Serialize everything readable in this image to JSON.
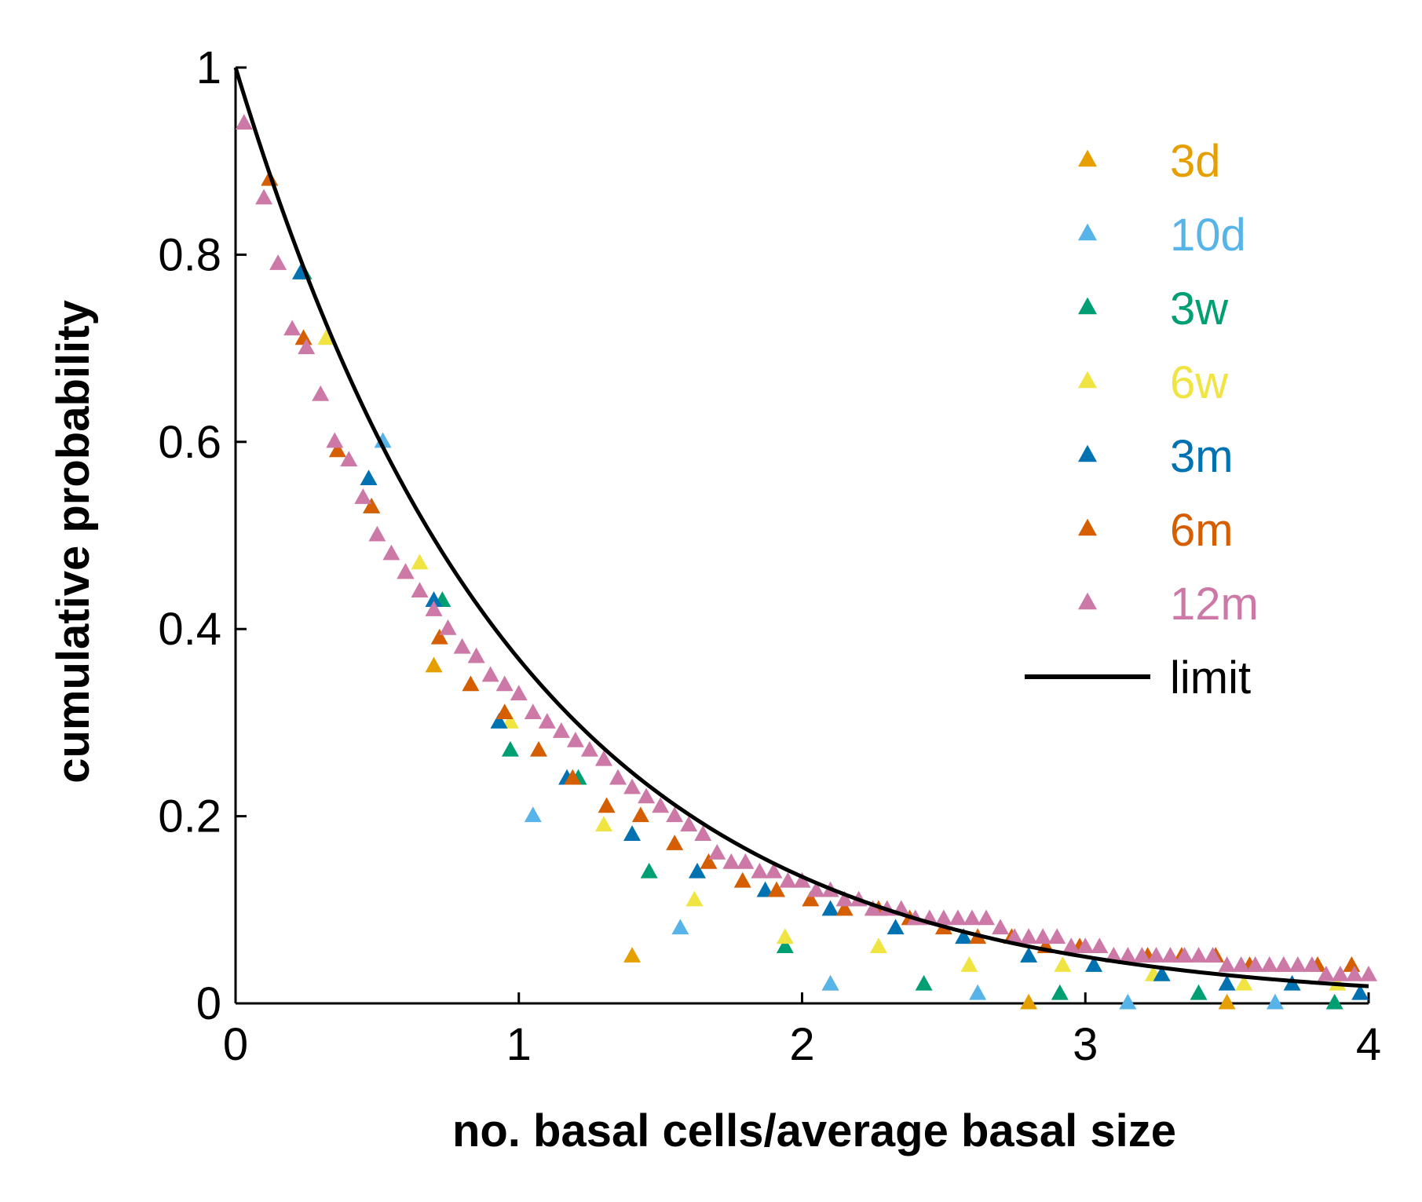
{
  "chart_data": {
    "type": "scatter",
    "title": "",
    "xlabel": "no. basal cells/average basal size",
    "ylabel": "cumulative probability",
    "xlim": [
      0,
      4
    ],
    "ylim": [
      0,
      1
    ],
    "xticks": [
      0,
      1,
      2,
      3,
      4
    ],
    "xtick_labels": [
      "0",
      "1",
      "2",
      "3",
      "4"
    ],
    "yticks": [
      0,
      0.2,
      0.4,
      0.6,
      0.8,
      1
    ],
    "ytick_labels": [
      "0",
      "0.2",
      "0.4",
      "0.6",
      "0.8",
      "1"
    ],
    "grid": false,
    "legend_position": "top-right",
    "series": [
      {
        "name": "3d",
        "color": "#E69F00",
        "marker": "triangle",
        "points": [
          [
            0.7,
            0.36
          ],
          [
            1.4,
            0.05
          ],
          [
            2.1,
            0.02
          ],
          [
            2.8,
            0.0
          ],
          [
            3.5,
            0.0
          ]
        ]
      },
      {
        "name": "10d",
        "color": "#56B4E9",
        "marker": "triangle",
        "points": [
          [
            0.52,
            0.6
          ],
          [
            1.05,
            0.2
          ],
          [
            1.57,
            0.08
          ],
          [
            2.1,
            0.02
          ],
          [
            2.62,
            0.01
          ],
          [
            3.15,
            0.0
          ],
          [
            3.67,
            0.0
          ]
        ]
      },
      {
        "name": "3w",
        "color": "#009E73",
        "marker": "triangle",
        "points": [
          [
            0.24,
            0.78
          ],
          [
            0.48,
            0.53
          ],
          [
            0.73,
            0.43
          ],
          [
            0.97,
            0.27
          ],
          [
            1.21,
            0.24
          ],
          [
            1.46,
            0.14
          ],
          [
            1.94,
            0.06
          ],
          [
            2.43,
            0.02
          ],
          [
            2.91,
            0.01
          ],
          [
            3.4,
            0.01
          ],
          [
            3.88,
            0.0
          ]
        ]
      },
      {
        "name": "6w",
        "color": "#F0E442",
        "marker": "triangle",
        "points": [
          [
            0.32,
            0.71
          ],
          [
            0.65,
            0.47
          ],
          [
            0.97,
            0.3
          ],
          [
            1.3,
            0.19
          ],
          [
            1.62,
            0.11
          ],
          [
            1.94,
            0.07
          ],
          [
            2.27,
            0.06
          ],
          [
            2.59,
            0.04
          ],
          [
            2.92,
            0.04
          ],
          [
            3.24,
            0.03
          ],
          [
            3.56,
            0.02
          ],
          [
            3.89,
            0.02
          ]
        ]
      },
      {
        "name": "3m",
        "color": "#0072B2",
        "marker": "triangle",
        "points": [
          [
            0.23,
            0.78
          ],
          [
            0.47,
            0.56
          ],
          [
            0.7,
            0.43
          ],
          [
            0.93,
            0.3
          ],
          [
            1.17,
            0.24
          ],
          [
            1.4,
            0.18
          ],
          [
            1.63,
            0.14
          ],
          [
            1.87,
            0.12
          ],
          [
            2.1,
            0.1
          ],
          [
            2.33,
            0.08
          ],
          [
            2.57,
            0.07
          ],
          [
            2.8,
            0.05
          ],
          [
            3.03,
            0.04
          ],
          [
            3.27,
            0.03
          ],
          [
            3.5,
            0.02
          ],
          [
            3.73,
            0.02
          ],
          [
            3.97,
            0.01
          ]
        ]
      },
      {
        "name": "6m",
        "color": "#D55E00",
        "marker": "triangle",
        "points": [
          [
            0.12,
            0.88
          ],
          [
            0.24,
            0.71
          ],
          [
            0.36,
            0.59
          ],
          [
            0.48,
            0.53
          ],
          [
            0.6,
            0.46
          ],
          [
            0.72,
            0.39
          ],
          [
            0.83,
            0.34
          ],
          [
            0.95,
            0.31
          ],
          [
            1.07,
            0.27
          ],
          [
            1.19,
            0.24
          ],
          [
            1.31,
            0.21
          ],
          [
            1.43,
            0.2
          ],
          [
            1.55,
            0.17
          ],
          [
            1.67,
            0.15
          ],
          [
            1.79,
            0.13
          ],
          [
            1.91,
            0.12
          ],
          [
            2.03,
            0.11
          ],
          [
            2.15,
            0.1
          ],
          [
            2.27,
            0.1
          ],
          [
            2.38,
            0.09
          ],
          [
            2.5,
            0.08
          ],
          [
            2.62,
            0.07
          ],
          [
            2.74,
            0.07
          ],
          [
            2.86,
            0.06
          ],
          [
            2.98,
            0.06
          ],
          [
            3.1,
            0.05
          ],
          [
            3.22,
            0.05
          ],
          [
            3.34,
            0.05
          ],
          [
            3.46,
            0.05
          ],
          [
            3.58,
            0.04
          ],
          [
            3.7,
            0.04
          ],
          [
            3.82,
            0.04
          ],
          [
            3.94,
            0.04
          ]
        ]
      },
      {
        "name": "12m",
        "color": "#CC79A7",
        "marker": "triangle",
        "points": [
          [
            0.03,
            0.94
          ],
          [
            0.1,
            0.86
          ],
          [
            0.15,
            0.79
          ],
          [
            0.2,
            0.72
          ],
          [
            0.25,
            0.7
          ],
          [
            0.3,
            0.65
          ],
          [
            0.35,
            0.6
          ],
          [
            0.4,
            0.58
          ],
          [
            0.45,
            0.54
          ],
          [
            0.5,
            0.5
          ],
          [
            0.55,
            0.48
          ],
          [
            0.6,
            0.46
          ],
          [
            0.65,
            0.44
          ],
          [
            0.7,
            0.42
          ],
          [
            0.75,
            0.4
          ],
          [
            0.8,
            0.38
          ],
          [
            0.85,
            0.37
          ],
          [
            0.9,
            0.35
          ],
          [
            0.95,
            0.34
          ],
          [
            1.0,
            0.33
          ],
          [
            1.05,
            0.31
          ],
          [
            1.1,
            0.3
          ],
          [
            1.15,
            0.29
          ],
          [
            1.2,
            0.28
          ],
          [
            1.25,
            0.27
          ],
          [
            1.3,
            0.26
          ],
          [
            1.35,
            0.24
          ],
          [
            1.4,
            0.23
          ],
          [
            1.45,
            0.22
          ],
          [
            1.5,
            0.21
          ],
          [
            1.55,
            0.2
          ],
          [
            1.6,
            0.19
          ],
          [
            1.65,
            0.18
          ],
          [
            1.7,
            0.16
          ],
          [
            1.75,
            0.15
          ],
          [
            1.8,
            0.15
          ],
          [
            1.85,
            0.14
          ],
          [
            1.9,
            0.14
          ],
          [
            1.95,
            0.13
          ],
          [
            2.0,
            0.13
          ],
          [
            2.05,
            0.12
          ],
          [
            2.1,
            0.12
          ],
          [
            2.15,
            0.11
          ],
          [
            2.2,
            0.11
          ],
          [
            2.25,
            0.1
          ],
          [
            2.3,
            0.1
          ],
          [
            2.35,
            0.1
          ],
          [
            2.4,
            0.09
          ],
          [
            2.45,
            0.09
          ],
          [
            2.5,
            0.09
          ],
          [
            2.55,
            0.09
          ],
          [
            2.6,
            0.09
          ],
          [
            2.65,
            0.09
          ],
          [
            2.7,
            0.08
          ],
          [
            2.75,
            0.07
          ],
          [
            2.8,
            0.07
          ],
          [
            2.85,
            0.07
          ],
          [
            2.9,
            0.07
          ],
          [
            2.95,
            0.06
          ],
          [
            3.0,
            0.06
          ],
          [
            3.05,
            0.06
          ],
          [
            3.1,
            0.05
          ],
          [
            3.15,
            0.05
          ],
          [
            3.2,
            0.05
          ],
          [
            3.25,
            0.05
          ],
          [
            3.3,
            0.05
          ],
          [
            3.35,
            0.05
          ],
          [
            3.4,
            0.05
          ],
          [
            3.45,
            0.05
          ],
          [
            3.5,
            0.04
          ],
          [
            3.55,
            0.04
          ],
          [
            3.6,
            0.04
          ],
          [
            3.65,
            0.04
          ],
          [
            3.7,
            0.04
          ],
          [
            3.75,
            0.04
          ],
          [
            3.8,
            0.04
          ],
          [
            3.85,
            0.03
          ],
          [
            3.9,
            0.03
          ],
          [
            3.95,
            0.03
          ],
          [
            4.0,
            0.03
          ]
        ]
      },
      {
        "name": "limit",
        "color": "#000000",
        "marker": "line",
        "function": "exp(-x)",
        "x": [
          0,
          0.25,
          0.5,
          0.75,
          1,
          1.25,
          1.5,
          1.75,
          2,
          2.25,
          2.5,
          2.75,
          3,
          3.25,
          3.5,
          3.75,
          4
        ],
        "y": [
          1,
          0.779,
          0.607,
          0.472,
          0.368,
          0.287,
          0.223,
          0.174,
          0.135,
          0.105,
          0.082,
          0.064,
          0.05,
          0.039,
          0.03,
          0.024,
          0.018
        ]
      }
    ]
  }
}
